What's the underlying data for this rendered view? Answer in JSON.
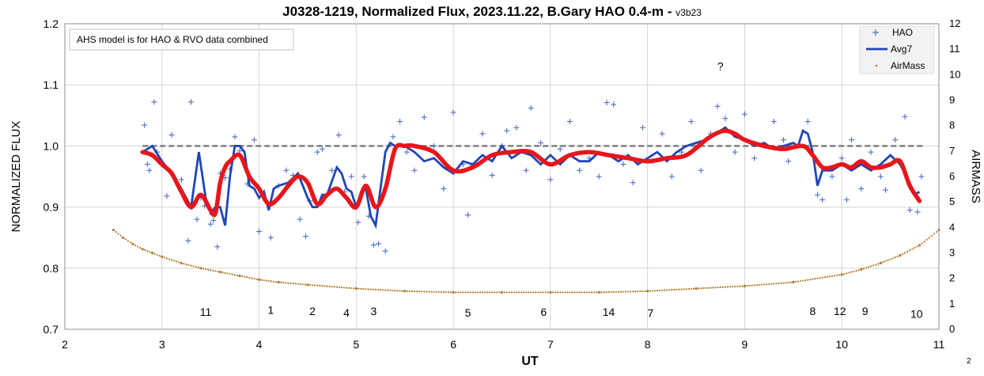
{
  "chart_data": {
    "type": "line",
    "title": "J0328-1219, Normalized Flux, 2023.11.22, B.Gary HAO 0.4-m",
    "version": "v3b23",
    "title_separator": " - ",
    "xlabel": "UT",
    "ylabel": "NORMALIZED FLUX",
    "y2label": "AIRMASS",
    "xlim": [
      2,
      11
    ],
    "ylim": [
      0.7,
      1.2
    ],
    "y2lim": [
      0,
      12
    ],
    "x_ticks": [
      "2",
      "3",
      "4",
      "5",
      "6",
      "7",
      "8",
      "9",
      "10",
      "11"
    ],
    "y_ticks": [
      "0.7",
      "0.8",
      "0.9",
      "1.0",
      "1.1",
      "1.2"
    ],
    "y2_ticks": [
      "0",
      "1",
      "2",
      "3",
      "4",
      "5",
      "6",
      "7",
      "8",
      "9",
      "10",
      "11",
      "12"
    ],
    "grid": true,
    "legend_position": "top-right",
    "legend": [
      "HAO",
      "Avg7",
      "AirMass"
    ],
    "note": "AHS model is for HAO & RVO data combined",
    "corner_label": "2",
    "annotations": [
      {
        "text": "11",
        "x": 3.45,
        "y": 0.722
      },
      {
        "text": "1",
        "x": 4.12,
        "y": 0.725
      },
      {
        "text": "2",
        "x": 4.55,
        "y": 0.723
      },
      {
        "text": "4",
        "x": 4.9,
        "y": 0.721
      },
      {
        "text": "3",
        "x": 5.18,
        "y": 0.723
      },
      {
        "text": "5",
        "x": 6.15,
        "y": 0.721
      },
      {
        "text": "6",
        "x": 6.93,
        "y": 0.722
      },
      {
        "text": "14",
        "x": 7.6,
        "y": 0.722
      },
      {
        "text": "7",
        "x": 8.03,
        "y": 0.72
      },
      {
        "text": "8",
        "x": 9.7,
        "y": 0.723
      },
      {
        "text": "12",
        "x": 9.98,
        "y": 0.723
      },
      {
        "text": "9",
        "x": 10.24,
        "y": 0.723
      },
      {
        "text": "10",
        "x": 10.77,
        "y": 0.719
      },
      {
        "text": "?",
        "x": 8.75,
        "y": 1.124
      }
    ],
    "reference_line": {
      "y": 1.0
    },
    "colors": {
      "hao": "#4a6fc4",
      "avg7": "#1f45b5",
      "model": "#e8161b",
      "airmass": "#b07a2a",
      "reference": "#7f7f7f",
      "grid": "#d4d4d4"
    },
    "series": [
      {
        "name": "Avg7",
        "kind": "line",
        "x": [
          2.8,
          2.9,
          3.0,
          3.1,
          3.2,
          3.3,
          3.38,
          3.45,
          3.5,
          3.55,
          3.6,
          3.65,
          3.7,
          3.75,
          3.8,
          3.85,
          3.9,
          3.95,
          4.0,
          4.05,
          4.1,
          4.15,
          4.2,
          4.3,
          4.4,
          4.5,
          4.55,
          4.6,
          4.65,
          4.7,
          4.8,
          4.85,
          4.9,
          4.95,
          5.0,
          5.05,
          5.1,
          5.15,
          5.2,
          5.25,
          5.3,
          5.35,
          5.4,
          5.5,
          5.6,
          5.7,
          5.8,
          5.9,
          6.0,
          6.1,
          6.2,
          6.3,
          6.4,
          6.5,
          6.6,
          6.7,
          6.8,
          6.9,
          7.0,
          7.1,
          7.2,
          7.3,
          7.4,
          7.5,
          7.6,
          7.7,
          7.8,
          7.9,
          8.0,
          8.1,
          8.2,
          8.3,
          8.4,
          8.5,
          8.6,
          8.7,
          8.8,
          8.9,
          9.0,
          9.1,
          9.2,
          9.3,
          9.4,
          9.5,
          9.55,
          9.6,
          9.65,
          9.7,
          9.75,
          9.8,
          9.9,
          10.0,
          10.1,
          10.2,
          10.3,
          10.4,
          10.5,
          10.6,
          10.7,
          10.75,
          10.8
        ],
        "y": [
          0.99,
          1.0,
          0.975,
          0.955,
          0.93,
          0.9,
          0.99,
          0.915,
          0.89,
          0.9,
          0.9,
          0.87,
          0.95,
          1.0,
          1.0,
          0.99,
          0.935,
          0.93,
          0.915,
          0.925,
          0.895,
          0.93,
          0.935,
          0.94,
          0.955,
          0.915,
          0.9,
          0.9,
          0.92,
          0.92,
          0.965,
          0.955,
          0.93,
          0.925,
          0.9,
          0.925,
          0.93,
          0.885,
          0.87,
          0.93,
          0.99,
          1.005,
          1.0,
          1.0,
          0.99,
          0.975,
          0.98,
          0.965,
          0.955,
          0.975,
          0.97,
          0.985,
          0.975,
          1.0,
          0.98,
          0.99,
          0.985,
          0.97,
          0.985,
          0.97,
          0.985,
          0.975,
          0.975,
          0.99,
          0.985,
          0.975,
          0.985,
          0.97,
          0.98,
          0.99,
          0.975,
          0.99,
          1.0,
          1.005,
          1.01,
          1.02,
          1.03,
          1.015,
          1.01,
          1.0,
          1.005,
          0.995,
          1.0,
          1.005,
          1.0,
          1.025,
          1.02,
          0.99,
          0.935,
          0.96,
          0.96,
          0.97,
          0.96,
          0.97,
          0.96,
          0.97,
          0.985,
          0.97,
          0.94,
          0.92,
          0.925
        ]
      },
      {
        "name": "",
        "kind": "model",
        "x": [
          2.8,
          2.9,
          3.0,
          3.1,
          3.2,
          3.3,
          3.4,
          3.5,
          3.55,
          3.6,
          3.65,
          3.7,
          3.8,
          3.9,
          4.0,
          4.1,
          4.2,
          4.3,
          4.4,
          4.5,
          4.6,
          4.7,
          4.8,
          4.9,
          5.0,
          5.1,
          5.2,
          5.3,
          5.4,
          5.5,
          5.6,
          5.8,
          6.0,
          6.2,
          6.4,
          6.6,
          6.8,
          7.0,
          7.2,
          7.4,
          7.6,
          7.8,
          8.0,
          8.2,
          8.4,
          8.6,
          8.7,
          8.8,
          8.9,
          9.0,
          9.2,
          9.4,
          9.6,
          9.7,
          9.8,
          9.9,
          10.0,
          10.1,
          10.2,
          10.3,
          10.4,
          10.5,
          10.6,
          10.7,
          10.8
        ],
        "y": [
          0.99,
          0.985,
          0.97,
          0.955,
          0.925,
          0.9,
          0.92,
          0.895,
          0.89,
          0.94,
          0.965,
          0.975,
          0.985,
          0.95,
          0.93,
          0.905,
          0.915,
          0.935,
          0.95,
          0.94,
          0.905,
          0.92,
          0.93,
          0.915,
          0.9,
          0.935,
          0.9,
          0.93,
          0.995,
          1.0,
          1.0,
          0.99,
          0.96,
          0.965,
          0.985,
          0.99,
          0.99,
          0.97,
          0.985,
          0.99,
          0.985,
          0.98,
          0.975,
          0.98,
          0.985,
          1.01,
          1.02,
          1.025,
          1.02,
          1.01,
          1.0,
          0.995,
          1.0,
          0.985,
          0.965,
          0.965,
          0.97,
          0.965,
          0.975,
          0.965,
          0.965,
          0.97,
          0.975,
          0.935,
          0.91
        ]
      },
      {
        "name": "AirMass",
        "kind": "dots",
        "axis": "right",
        "x": [
          2.5,
          2.6,
          2.7,
          2.8,
          2.9,
          3.0,
          3.2,
          3.4,
          3.6,
          3.8,
          4.0,
          4.2,
          4.5,
          5.0,
          5.5,
          6.0,
          6.5,
          7.0,
          7.5,
          8.0,
          8.5,
          9.0,
          9.5,
          10.0,
          10.2,
          10.4,
          10.6,
          10.8,
          11.0
        ],
        "y": [
          3.9,
          3.6,
          3.35,
          3.15,
          3.0,
          2.85,
          2.6,
          2.4,
          2.25,
          2.1,
          1.95,
          1.85,
          1.75,
          1.6,
          1.5,
          1.45,
          1.45,
          1.45,
          1.45,
          1.5,
          1.6,
          1.7,
          1.85,
          2.15,
          2.35,
          2.6,
          2.9,
          3.3,
          3.9
        ]
      },
      {
        "name": "HAO",
        "kind": "scatter",
        "marker": "+",
        "x": [
          2.82,
          2.85,
          2.87,
          2.92,
          2.95,
          3.05,
          3.1,
          3.2,
          3.27,
          3.3,
          3.36,
          3.4,
          3.44,
          3.5,
          3.53,
          3.57,
          3.6,
          3.65,
          3.7,
          3.75,
          3.8,
          3.88,
          3.95,
          4.0,
          4.07,
          4.12,
          4.2,
          4.28,
          4.35,
          4.42,
          4.48,
          4.52,
          4.6,
          4.65,
          4.75,
          4.82,
          4.88,
          4.95,
          5.02,
          5.08,
          5.13,
          5.18,
          5.23,
          5.3,
          5.38,
          5.45,
          5.52,
          5.6,
          5.7,
          5.8,
          5.9,
          6.0,
          6.1,
          6.15,
          6.2,
          6.3,
          6.4,
          6.5,
          6.55,
          6.65,
          6.75,
          6.8,
          6.9,
          7.0,
          7.1,
          7.2,
          7.3,
          7.4,
          7.5,
          7.58,
          7.65,
          7.75,
          7.85,
          7.95,
          8.05,
          8.15,
          8.25,
          8.35,
          8.45,
          8.55,
          8.65,
          8.72,
          8.8,
          8.9,
          9.0,
          9.1,
          9.2,
          9.3,
          9.4,
          9.45,
          9.55,
          9.65,
          9.75,
          9.8,
          9.9,
          10.0,
          10.05,
          10.1,
          10.2,
          10.3,
          10.4,
          10.45,
          10.55,
          10.65,
          10.7,
          10.78,
          10.82
        ],
        "y": [
          1.034,
          0.97,
          0.96,
          1.072,
          0.99,
          0.918,
          1.018,
          0.945,
          0.845,
          1.072,
          0.88,
          0.915,
          0.902,
          0.872,
          0.878,
          0.835,
          0.955,
          0.948,
          0.962,
          1.015,
          0.992,
          0.938,
          1.01,
          0.86,
          0.91,
          0.85,
          0.935,
          0.96,
          0.952,
          0.88,
          0.852,
          0.91,
          0.99,
          0.995,
          0.96,
          1.018,
          0.925,
          0.95,
          0.875,
          0.95,
          0.885,
          0.838,
          0.84,
          0.828,
          1.015,
          1.04,
          0.99,
          0.96,
          1.047,
          1.0,
          0.93,
          1.055,
          0.97,
          0.887,
          0.968,
          1.02,
          0.952,
          1.0,
          1.025,
          1.03,
          0.96,
          1.062,
          1.005,
          0.945,
          0.995,
          1.04,
          0.96,
          0.98,
          0.95,
          1.071,
          1.068,
          0.97,
          0.94,
          1.03,
          0.975,
          1.02,
          0.95,
          0.99,
          1.04,
          0.96,
          1.02,
          1.065,
          1.045,
          0.99,
          1.052,
          0.98,
          1.0,
          1.04,
          1.01,
          0.975,
          1.0,
          1.04,
          0.92,
          0.912,
          0.95,
          0.98,
          0.912,
          1.01,
          0.93,
          0.99,
          0.95,
          0.928,
          1.01,
          1.048,
          0.895,
          0.892,
          0.95
        ]
      }
    ]
  }
}
